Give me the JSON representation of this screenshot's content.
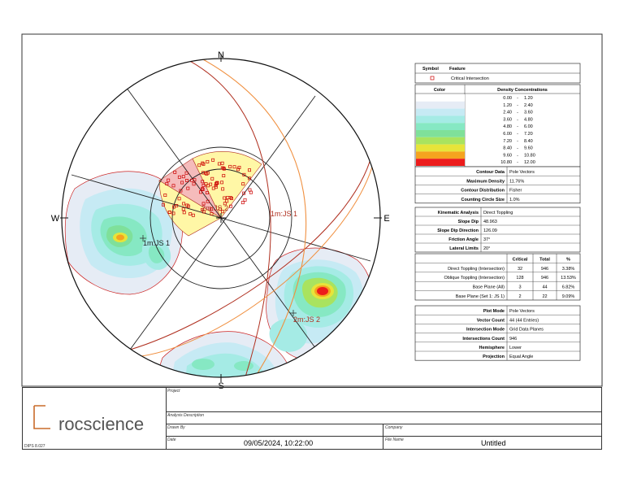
{
  "compass": {
    "north": "N",
    "south": "S",
    "east": "E",
    "west": "W"
  },
  "plot_labels": {
    "js1_plane": "1m:JS 1",
    "js1_pole": "1m:JS 1",
    "js2_pole": "2m:JS 2",
    "js2_plane": "2m:JS 2"
  },
  "legend": {
    "header_symbol": "Symbol",
    "header_feature": "Feature",
    "feature_critical": "Critical Intersection",
    "color_header": "Color",
    "density_header": "Density Concentrations",
    "density_rows": [
      {
        "lo": "0.00",
        "hi": "1.20",
        "color": "#ffffff"
      },
      {
        "lo": "1.20",
        "hi": "2.40",
        "color": "#e6ecf5"
      },
      {
        "lo": "2.40",
        "hi": "3.60",
        "color": "#c6eaf4"
      },
      {
        "lo": "3.60",
        "hi": "4.80",
        "color": "#a5ebe5"
      },
      {
        "lo": "4.80",
        "hi": "6.00",
        "color": "#86e8c3"
      },
      {
        "lo": "6.00",
        "hi": "7.20",
        "color": "#7fe09a"
      },
      {
        "lo": "7.20",
        "hi": "8.40",
        "color": "#a9e35f"
      },
      {
        "lo": "8.40",
        "hi": "9.60",
        "color": "#e7e43a"
      },
      {
        "lo": "9.60",
        "hi": "10.80",
        "color": "#f5a31f"
      },
      {
        "lo": "10.80",
        "hi": "12.00",
        "color": "#ec1c1c"
      }
    ],
    "dash": "-",
    "contour": [
      {
        "label": "Contour Data",
        "value": "Pole Vectors"
      },
      {
        "label": "Maximum Density",
        "value": "11.76%"
      },
      {
        "label": "Contour Distribution",
        "value": "Fisher"
      },
      {
        "label": "Counting Circle Size",
        "value": "1.0%"
      }
    ],
    "kinematic": [
      {
        "label": "Kinematic Analysis",
        "value": "Direct Toppling"
      },
      {
        "label": "Slope Dip",
        "value": "48.963"
      },
      {
        "label": "Slope Dip Direction",
        "value": "126.09"
      },
      {
        "label": "Friction Angle",
        "value": "37°"
      },
      {
        "label": "Lateral Limits",
        "value": "20°"
      }
    ],
    "results_headers": {
      "critical": "Critical",
      "total": "Total",
      "pct": "%"
    },
    "results": [
      {
        "label": "Direct Toppling (Intersection)",
        "critical": "32",
        "total": "946",
        "pct": "3.38%"
      },
      {
        "label": "Oblique Toppling (Intersection)",
        "critical": "128",
        "total": "946",
        "pct": "13.53%"
      },
      {
        "label": "Base Plane (All)",
        "critical": "3",
        "total": "44",
        "pct": "6.82%"
      },
      {
        "label": "Base Plane (Set 1: JS 1)",
        "critical": "2",
        "total": "22",
        "pct": "9.09%"
      }
    ],
    "plot_info": [
      {
        "label": "Plot Mode",
        "value": "Pole Vectors"
      },
      {
        "label": "Vector Count",
        "value": "44 (44 Entries)"
      },
      {
        "label": "Intersection Mode",
        "value": "Grid Data Planes"
      },
      {
        "label": "Intersections Count",
        "value": "946"
      },
      {
        "label": "Hemisphere",
        "value": "Lower"
      },
      {
        "label": "Projection",
        "value": "Equal Angle"
      }
    ]
  },
  "footer": {
    "brand": "rocscience",
    "version": "DIPS 8.027",
    "project_label": "Project",
    "analysis_label": "Analysis Description",
    "drawn_label": "Drawn By",
    "company_label": "Company",
    "date_label": "Date",
    "date_value": "09/05/2024, 10:22:00",
    "file_label": "File Name",
    "file_value": "Untitled"
  },
  "colors": {
    "accent": "#c96b2a",
    "critical": "#cc0000",
    "plane": "#b03020",
    "slope": "#f09040"
  }
}
